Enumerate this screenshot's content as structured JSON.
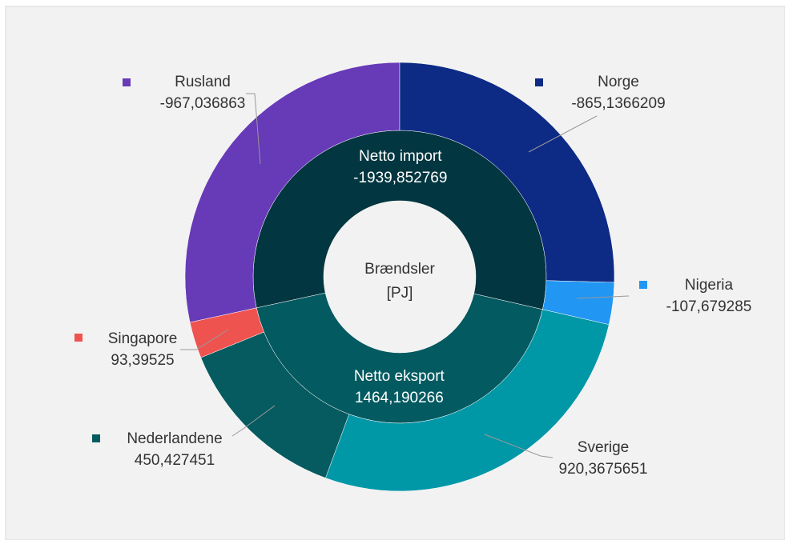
{
  "chart_data": {
    "type": "sunburst",
    "center_label": [
      "Brændsler",
      "[PJ]"
    ],
    "groups": [
      {
        "name": "Netto import",
        "value": -1939.852769,
        "value_label": "-1939,852769",
        "color": "#023640",
        "children": [
          {
            "name": "Rusland",
            "value": -967.036863,
            "value_label": "-967,036863",
            "color": "#673ab7"
          },
          {
            "name": "Norge",
            "value": -865.1366209,
            "value_label": "-865,1366209",
            "color": "#0d2a85"
          },
          {
            "name": "Nigeria",
            "value": -107.679285,
            "value_label": "-107,679285",
            "color": "#2196f3"
          }
        ]
      },
      {
        "name": "Netto eksport",
        "value": 1464.190266,
        "value_label": "1464,190266",
        "color": "#035a60",
        "children": [
          {
            "name": "Sverige",
            "value": 920.3675651,
            "value_label": "920,3675651",
            "color": "#0097a7"
          },
          {
            "name": "Nederlandene",
            "value": 450.427451,
            "value_label": "450,427451",
            "color": "#055b5f"
          },
          {
            "name": "Singapore",
            "value": 93.39525,
            "value_label": "93,39525",
            "color": "#ef5350"
          }
        ]
      }
    ]
  }
}
